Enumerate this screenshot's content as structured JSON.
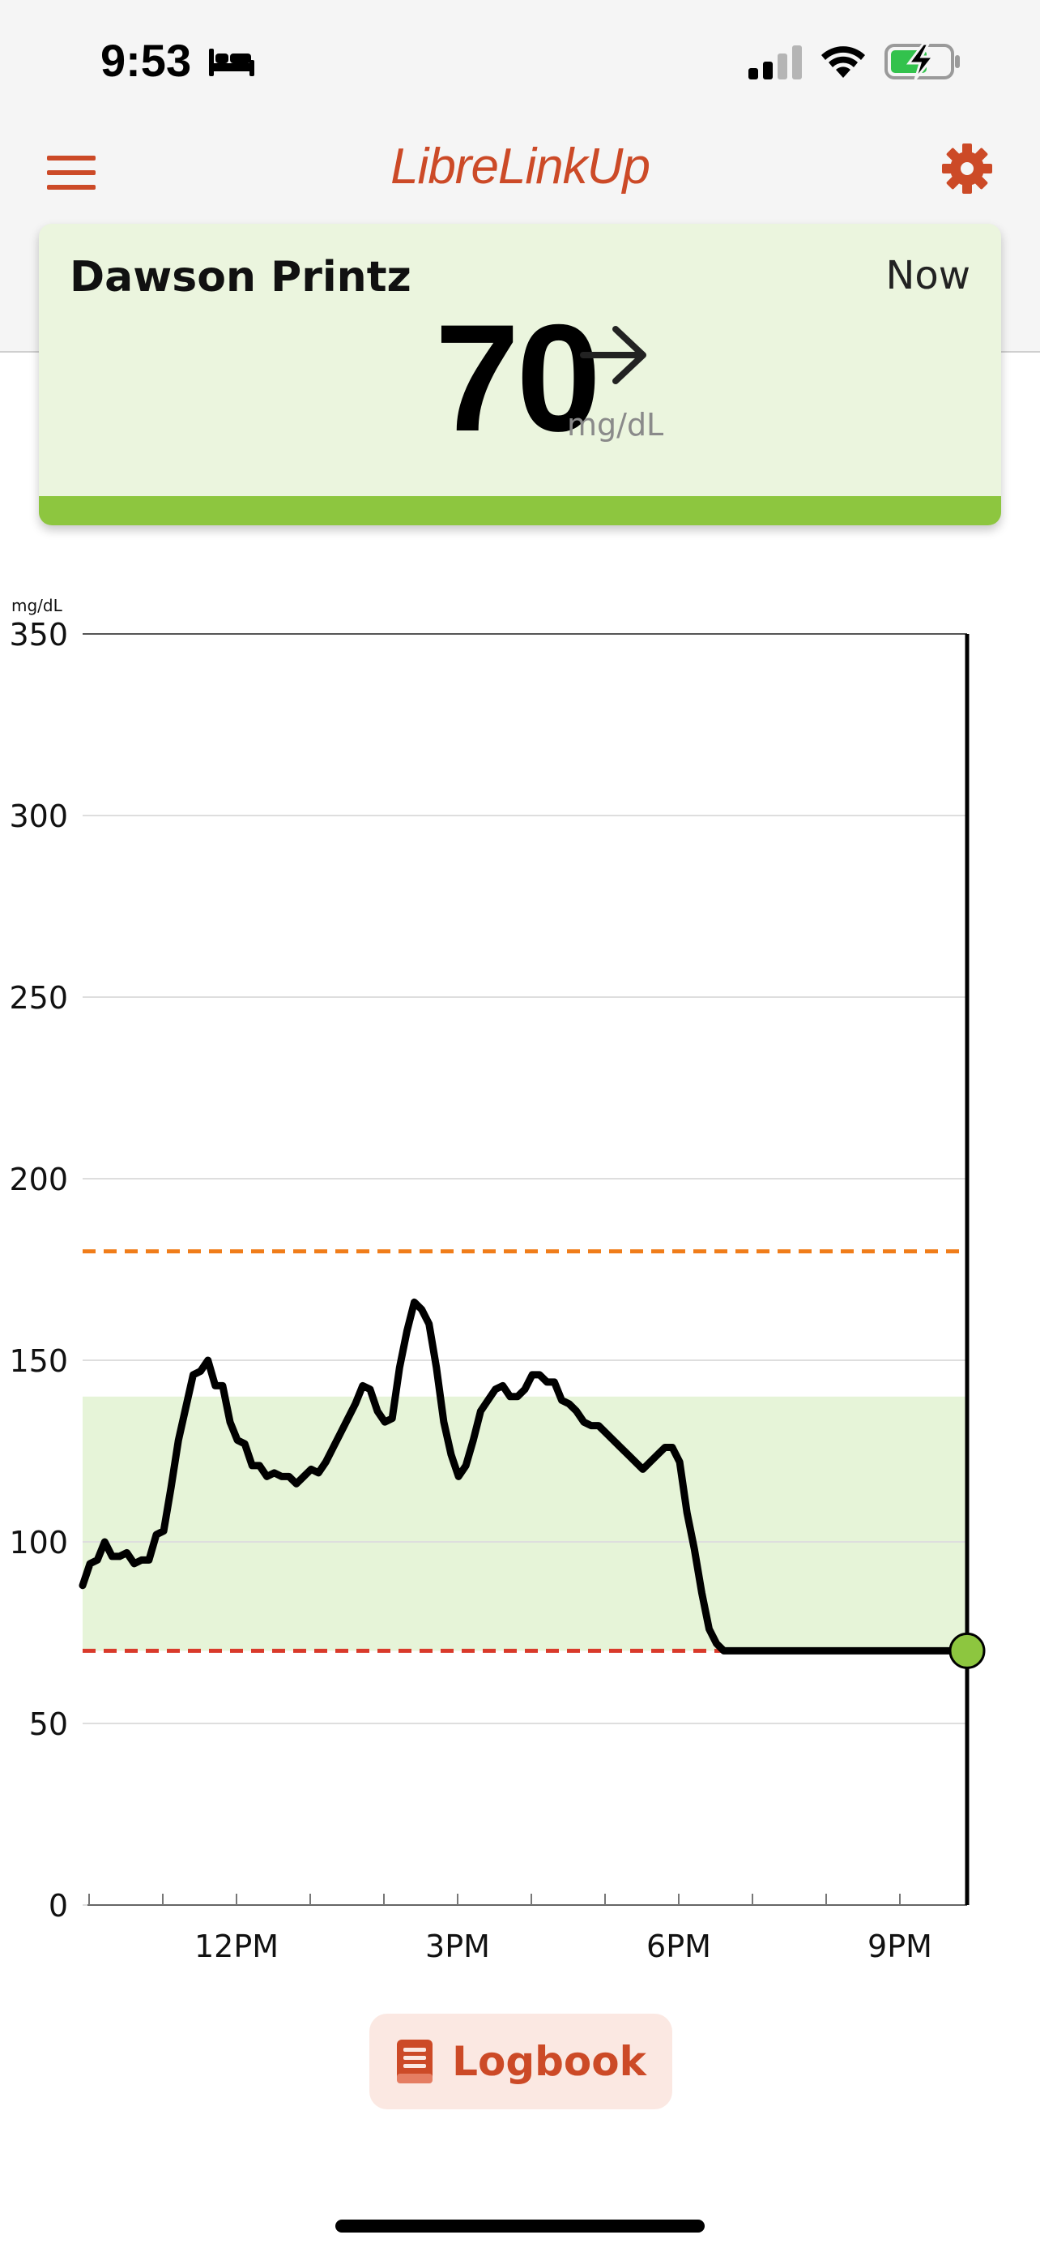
{
  "status_bar": {
    "time": "9:53",
    "icons": [
      "bed-icon",
      "cellular-signal-icon",
      "wifi-icon",
      "battery-charging-icon"
    ]
  },
  "header": {
    "title": "LibreLinkUp",
    "accent_color": "#cc4a27",
    "icons": [
      "menu-icon",
      "gear-icon"
    ]
  },
  "card": {
    "patient_name": "Dawson Printz",
    "time_label": "Now",
    "glucose_value": "70",
    "unit": "mg/dL",
    "trend_icon": "arrow-right-icon",
    "in_range_color": "#8dc63f",
    "background_color": "#ebf5de"
  },
  "chart_data": {
    "type": "line",
    "ylabel": "mg/dL",
    "ylim": [
      0,
      350
    ],
    "yticks": [
      0,
      50,
      100,
      150,
      200,
      250,
      300,
      350
    ],
    "xtick_labels": [
      "12PM",
      "3PM",
      "6PM",
      "9PM"
    ],
    "xlim_hours": [
      10,
      22
    ],
    "target_range": [
      70,
      140
    ],
    "high_threshold": 180,
    "low_threshold": 70,
    "colors": {
      "line": "#000000",
      "target_band": "#e6f4d8",
      "high_line": "#f07d1a",
      "low_line": "#d93a2b",
      "current_point": "#8dc63f"
    },
    "x": [
      10.0,
      10.1,
      10.2,
      10.3,
      10.4,
      10.5,
      10.6,
      10.7,
      10.8,
      10.9,
      11.0,
      11.1,
      11.2,
      11.3,
      11.4,
      11.5,
      11.6,
      11.7,
      11.8,
      11.9,
      12.0,
      12.1,
      12.2,
      12.3,
      12.4,
      12.5,
      12.6,
      12.7,
      12.8,
      12.9,
      13.0,
      13.1,
      13.2,
      13.3,
      13.4,
      13.5,
      13.6,
      13.7,
      13.8,
      13.9,
      14.0,
      14.1,
      14.2,
      14.3,
      14.4,
      14.5,
      14.6,
      14.7,
      14.8,
      14.9,
      15.0,
      15.1,
      15.2,
      15.3,
      15.4,
      15.5,
      15.6,
      15.7,
      15.8,
      15.9,
      16.0,
      16.1,
      16.2,
      16.3,
      16.4,
      16.5,
      16.6,
      16.7,
      16.8,
      16.9,
      17.0,
      17.1,
      17.2,
      17.3,
      17.4,
      17.5,
      17.6,
      17.7,
      17.8,
      17.9,
      18.0,
      18.1,
      18.2,
      18.3,
      18.4,
      18.5,
      18.6,
      18.7,
      18.8,
      18.9,
      19.0,
      19.1,
      19.2,
      19.3,
      19.4,
      19.5,
      19.6,
      19.7,
      19.8,
      19.9,
      20.0,
      20.1,
      20.2,
      20.3,
      20.4,
      20.5,
      20.6,
      20.7,
      20.8,
      20.9,
      21.0,
      21.1,
      21.2,
      21.3,
      21.4,
      21.5,
      21.6,
      21.7,
      21.8,
      21.9,
      22.0
    ],
    "series": [
      {
        "values": [
          88,
          94,
          95,
          100,
          96,
          96,
          97,
          94,
          95,
          95,
          102,
          103,
          115,
          128,
          137,
          146,
          147,
          150,
          143,
          143,
          133,
          128,
          127,
          121,
          121,
          118,
          119,
          118,
          118,
          116,
          118,
          120,
          119,
          122,
          126,
          130,
          134,
          138,
          143,
          142,
          136,
          133,
          134,
          148,
          158,
          166,
          164,
          160,
          148,
          133,
          124,
          118,
          121,
          128,
          136,
          139,
          142,
          143,
          140,
          140,
          142,
          146,
          146,
          144,
          144,
          139,
          138,
          136,
          133,
          132,
          132,
          130,
          128,
          126,
          124,
          122,
          120,
          122,
          124,
          126,
          126,
          122,
          108,
          98,
          86,
          76,
          72,
          70,
          70,
          70,
          70,
          70,
          70,
          70,
          70,
          70,
          70,
          70,
          70,
          70,
          70,
          70,
          70,
          70,
          70,
          70,
          70,
          70,
          70,
          70,
          70,
          70,
          70,
          70,
          70,
          70,
          70,
          70,
          70,
          70,
          70
        ]
      }
    ],
    "current_value": 70
  },
  "logbook": {
    "label": "Logbook",
    "icon": "book-icon"
  }
}
